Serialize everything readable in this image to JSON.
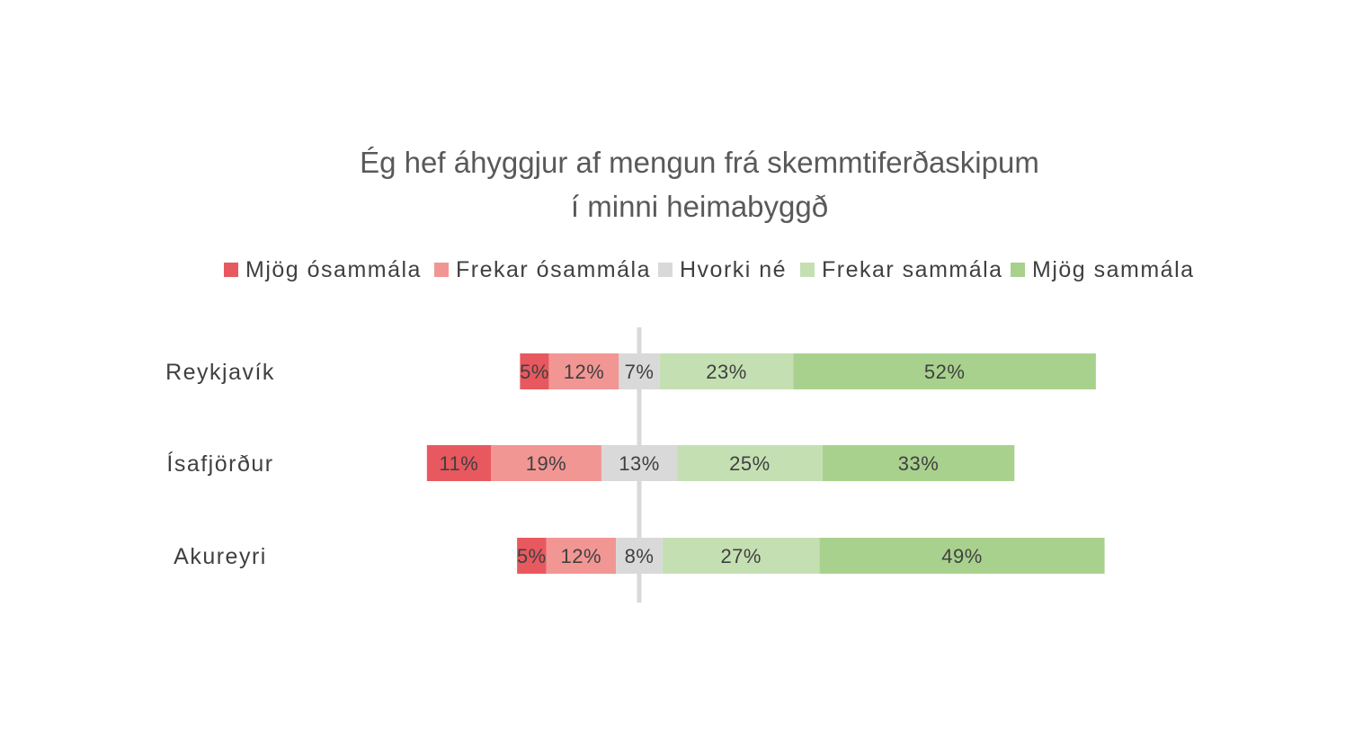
{
  "chart_data": {
    "type": "bar",
    "orientation": "horizontal",
    "stacked": "diverging",
    "title_lines": [
      "Ég hef áhyggjur af mengun frá skemmtiferðaskipum",
      "í minni heimabyggð"
    ],
    "categories": [
      "Reykjavík",
      "Ísafjörður",
      "Akureyri"
    ],
    "legend_position": "top",
    "series": [
      {
        "name": "Mjög ósammála",
        "color": "#e8595f",
        "values": [
          5,
          11,
          5
        ],
        "labels": [
          "5%",
          "11%",
          "5%"
        ]
      },
      {
        "name": "Frekar ósammála",
        "color": "#f29694",
        "values": [
          12,
          19,
          12
        ],
        "labels": [
          "12%",
          "19%",
          "12%"
        ]
      },
      {
        "name": "Hvorki né",
        "color": "#d9d9d9",
        "values": [
          7,
          13,
          8
        ],
        "labels": [
          "7%",
          "13%",
          "8%"
        ]
      },
      {
        "name": "Frekar sammála",
        "color": "#c4e0b2",
        "values": [
          23,
          25,
          27
        ],
        "labels": [
          "23%",
          "25%",
          "27%"
        ]
      },
      {
        "name": "Mjög sammála",
        "color": "#a9d18e",
        "values": [
          52,
          33,
          49
        ],
        "labels": [
          "52%",
          "33%",
          "49%"
        ]
      }
    ],
    "center_line_color": "#d9d9d9",
    "grid": false
  }
}
